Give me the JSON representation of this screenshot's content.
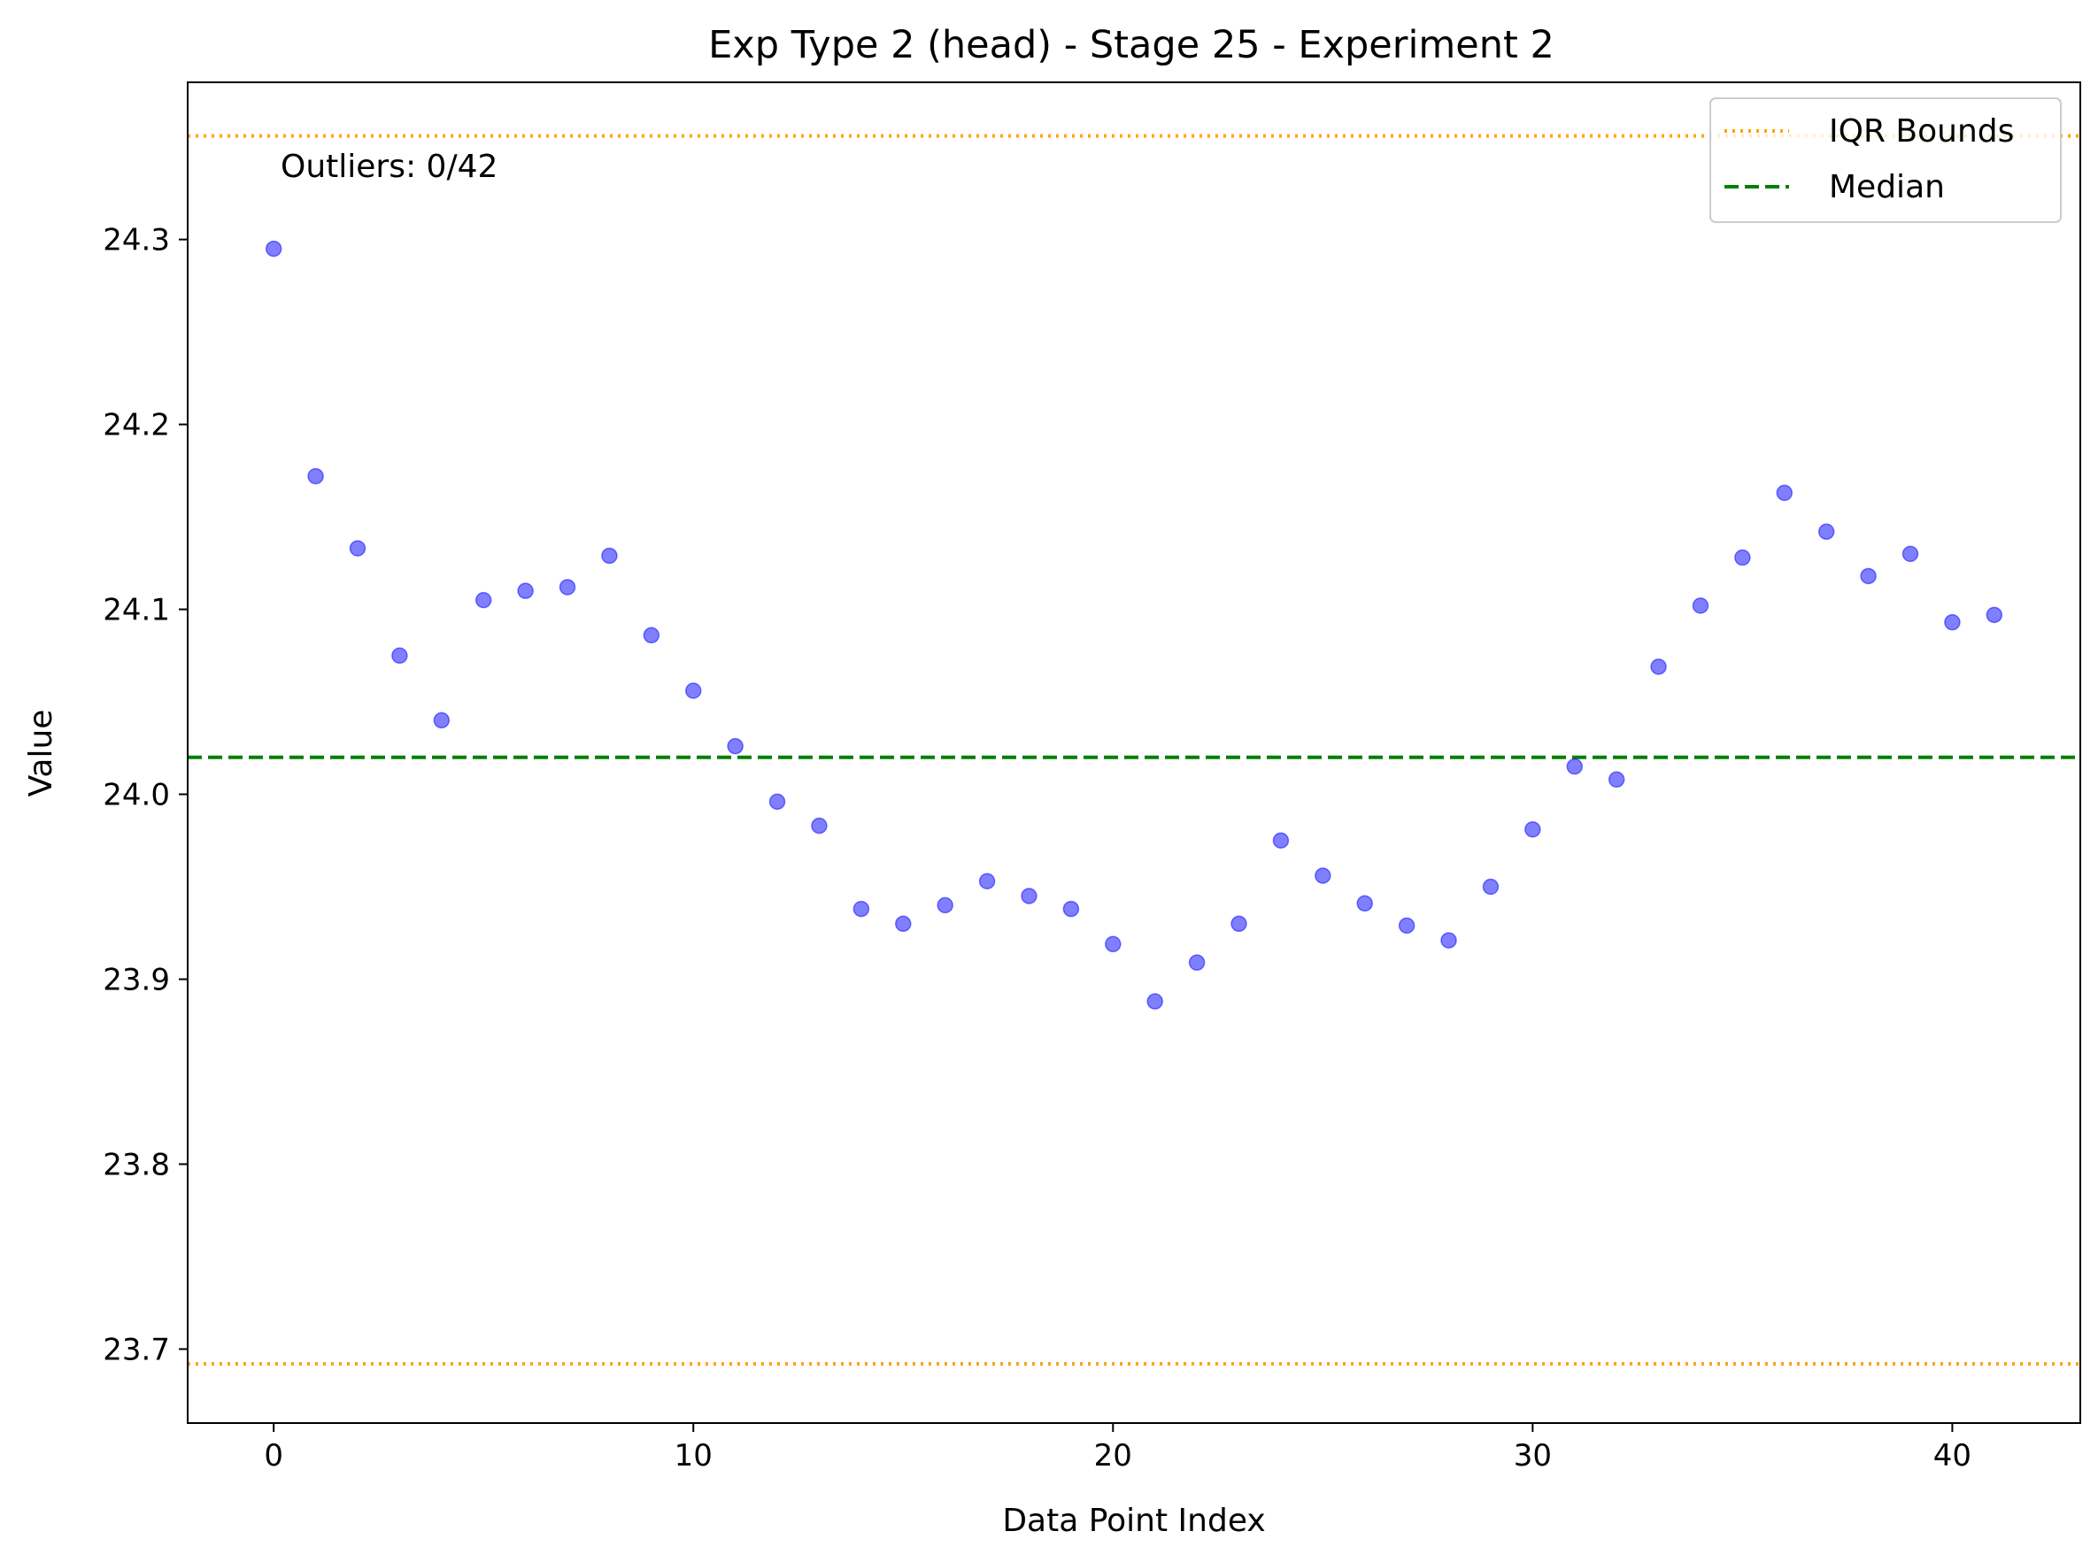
{
  "chart_data": {
    "type": "scatter",
    "title": "Exp Type 2 (head) - Stage 25 - Experiment 2",
    "xlabel": "Data Point Index",
    "ylabel": "Value",
    "xlim": [
      -2.05,
      43.05
    ],
    "ylim": [
      23.66,
      24.385
    ],
    "xticks": [
      0,
      10,
      20,
      30,
      40
    ],
    "xtick_labels": [
      "0",
      "10",
      "20",
      "30",
      "40"
    ],
    "yticks": [
      23.7,
      23.8,
      23.9,
      24.0,
      24.1,
      24.2,
      24.3
    ],
    "ytick_labels": [
      "23.7",
      "23.8",
      "23.9",
      "24.0",
      "24.1",
      "24.2",
      "24.3"
    ],
    "grid": false,
    "point_color": "#0000ff",
    "series": [
      {
        "x": [
          0,
          1,
          2,
          3,
          4,
          5,
          6,
          7,
          8,
          9,
          10,
          11,
          12,
          13,
          14,
          15,
          16,
          17,
          18,
          19,
          20,
          21,
          22,
          23,
          24,
          25,
          26,
          27,
          28,
          29,
          30,
          31,
          32,
          33,
          34,
          35,
          36,
          37,
          38,
          39,
          40,
          41
        ],
        "y": [
          24.295,
          24.172,
          24.133,
          24.075,
          24.04,
          24.105,
          24.11,
          24.112,
          24.129,
          24.086,
          24.056,
          24.026,
          23.996,
          23.983,
          23.938,
          23.93,
          23.94,
          23.953,
          23.945,
          23.938,
          23.919,
          23.888,
          23.909,
          23.93,
          23.975,
          23.956,
          23.941,
          23.929,
          23.921,
          23.95,
          23.981,
          24.015,
          24.008,
          24.069,
          24.102,
          24.128,
          24.163,
          24.142,
          24.118,
          24.13,
          24.093,
          24.097
        ]
      }
    ],
    "reference_lines": [
      {
        "name": "IQR Bounds",
        "value": 24.356,
        "color": "#ffa500",
        "style": "dotted"
      },
      {
        "name": "IQR Bounds",
        "value": 23.692,
        "color": "#ffa500",
        "style": "dotted"
      },
      {
        "name": "Median",
        "value": 24.02,
        "color": "#008000",
        "style": "dashed"
      }
    ],
    "legend": {
      "position": "top-right",
      "entries": [
        {
          "label": "IQR Bounds",
          "color": "#ffa500",
          "style": "dotted"
        },
        {
          "label": "Median",
          "color": "#008000",
          "style": "dashed"
        }
      ]
    },
    "annotation": "Outliers: 0/42"
  }
}
